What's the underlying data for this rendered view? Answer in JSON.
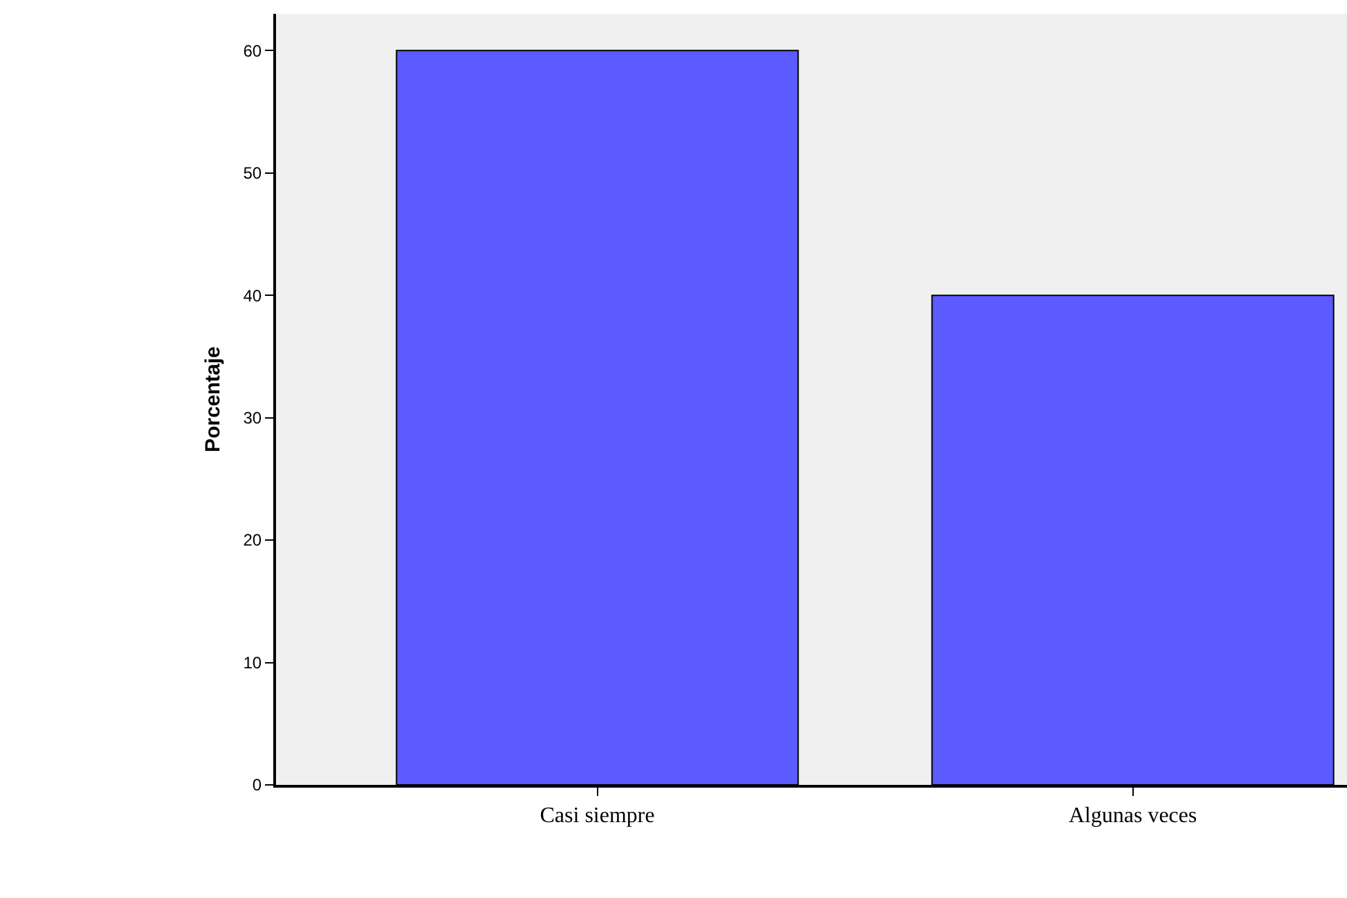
{
  "chart_data": {
    "type": "bar",
    "ylabel": "Porcentaje",
    "categories": [
      "Casi siempre",
      "Algunas veces"
    ],
    "values": [
      60,
      40
    ],
    "color": "#5b5bff",
    "ylim": [
      0,
      63
    ],
    "yticks": [
      0,
      10,
      20,
      30,
      40,
      50,
      60
    ],
    "grid": false
  }
}
